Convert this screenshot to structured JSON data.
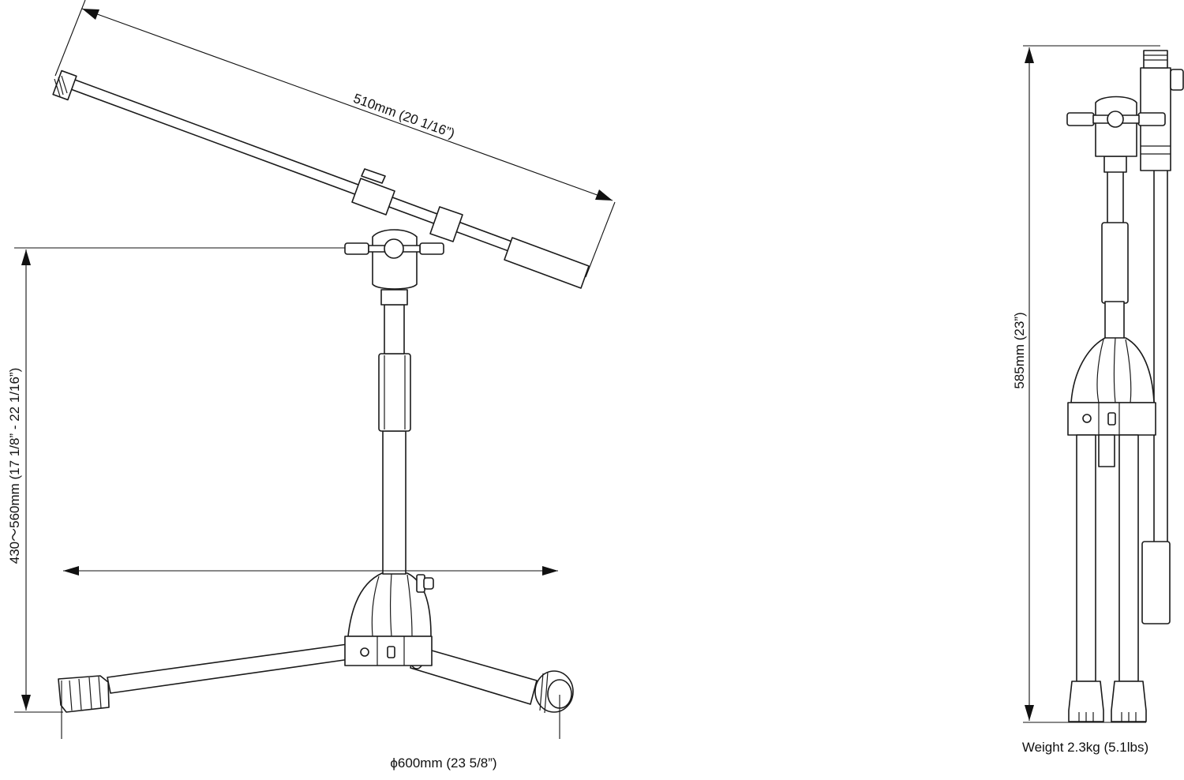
{
  "dimensions": {
    "boom_length": "510mm (20 1/16”)",
    "height_range": "430〜560mm (17 1/8” - 22 1/16”)",
    "base_diameter": "ϕ600mm (23 5/8”)",
    "folded_height": "585mm (23”)"
  },
  "weight": "Weight 2.3kg (5.1lbs)"
}
